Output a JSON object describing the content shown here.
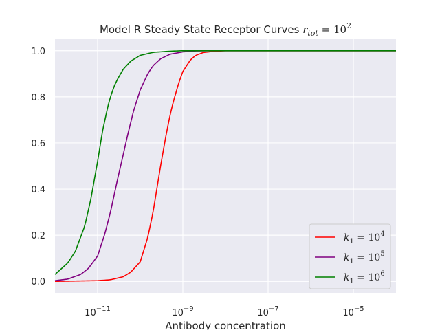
{
  "chart_data": {
    "type": "line",
    "title": "Model R Steady State Receptor Curves",
    "title_math": "r_tot = 10^2",
    "xlabel": "Antibody concentration",
    "ylabel": "",
    "xscale": "log",
    "xlim": [
      1e-12,
      0.0001
    ],
    "ylim": [
      -0.05,
      1.05
    ],
    "grid": true,
    "legend_position": "lower-right",
    "x_ticks": [
      {
        "value": 1e-11,
        "base": "10",
        "exp": "−11"
      },
      {
        "value": 1e-09,
        "base": "10",
        "exp": "−9"
      },
      {
        "value": 1e-07,
        "base": "10",
        "exp": "−7"
      },
      {
        "value": 1e-05,
        "base": "10",
        "exp": "−5"
      }
    ],
    "y_ticks": [
      {
        "value": 0.0,
        "label": "0.0"
      },
      {
        "value": 0.2,
        "label": "0.2"
      },
      {
        "value": 0.4,
        "label": "0.4"
      },
      {
        "value": 0.6,
        "label": "0.6"
      },
      {
        "value": 0.8,
        "label": "0.8"
      },
      {
        "value": 1.0,
        "label": "1.0"
      }
    ],
    "series": [
      {
        "name": "k_1 = 10^4",
        "label_var": "k",
        "label_sub": "1",
        "label_eq": " = 10",
        "label_exp": "4",
        "color": "#ff0000",
        "x": [
          1e-12,
          1e-11,
          2e-11,
          4e-11,
          6e-11,
          1e-10,
          1.5e-10,
          2e-10,
          2.5e-10,
          3e-10,
          4e-10,
          5e-10,
          6e-10,
          8e-10,
          1e-09,
          1.5e-09,
          2e-09,
          3e-09,
          5e-09,
          1e-08,
          1e-07,
          1e-06,
          1e-05,
          0.0001
        ],
        "y": [
          0.0,
          0.003,
          0.007,
          0.02,
          0.04,
          0.085,
          0.19,
          0.3,
          0.41,
          0.5,
          0.63,
          0.72,
          0.78,
          0.86,
          0.91,
          0.96,
          0.98,
          0.992,
          0.997,
          1.0,
          1.0,
          1.0,
          1.0,
          1.0
        ]
      },
      {
        "name": "k_1 = 10^5",
        "label_var": "k",
        "label_sub": "1",
        "label_eq": " = 10",
        "label_exp": "5",
        "color": "#800080",
        "x": [
          1e-12,
          2e-12,
          4e-12,
          6e-12,
          1e-11,
          1.5e-11,
          2e-11,
          3e-11,
          4e-11,
          5e-11,
          7e-11,
          1e-10,
          1.5e-10,
          2e-10,
          3e-10,
          5e-10,
          1e-09,
          2e-09,
          5e-09,
          1e-08,
          1e-07,
          1e-06,
          1e-05,
          0.0001
        ],
        "y": [
          0.003,
          0.01,
          0.03,
          0.055,
          0.11,
          0.21,
          0.3,
          0.45,
          0.55,
          0.63,
          0.74,
          0.83,
          0.9,
          0.935,
          0.965,
          0.985,
          0.995,
          0.999,
          1.0,
          1.0,
          1.0,
          1.0,
          1.0,
          1.0
        ]
      },
      {
        "name": "k_1 = 10^6",
        "label_var": "k",
        "label_sub": "1",
        "label_eq": " = 10",
        "label_exp": "6",
        "color": "#008000",
        "x": [
          1e-12,
          2e-12,
          3e-12,
          5e-12,
          7e-12,
          1e-11,
          1.3e-11,
          1.7e-11,
          2e-11,
          2.5e-11,
          3e-11,
          4e-11,
          6e-11,
          1e-10,
          2e-10,
          5e-10,
          1e-09,
          1e-08,
          1e-07,
          1e-06,
          1e-05,
          0.0001
        ],
        "y": [
          0.03,
          0.08,
          0.13,
          0.24,
          0.36,
          0.52,
          0.65,
          0.75,
          0.8,
          0.85,
          0.88,
          0.92,
          0.955,
          0.98,
          0.993,
          0.998,
          1.0,
          1.0,
          1.0,
          1.0,
          1.0,
          1.0
        ]
      }
    ]
  }
}
